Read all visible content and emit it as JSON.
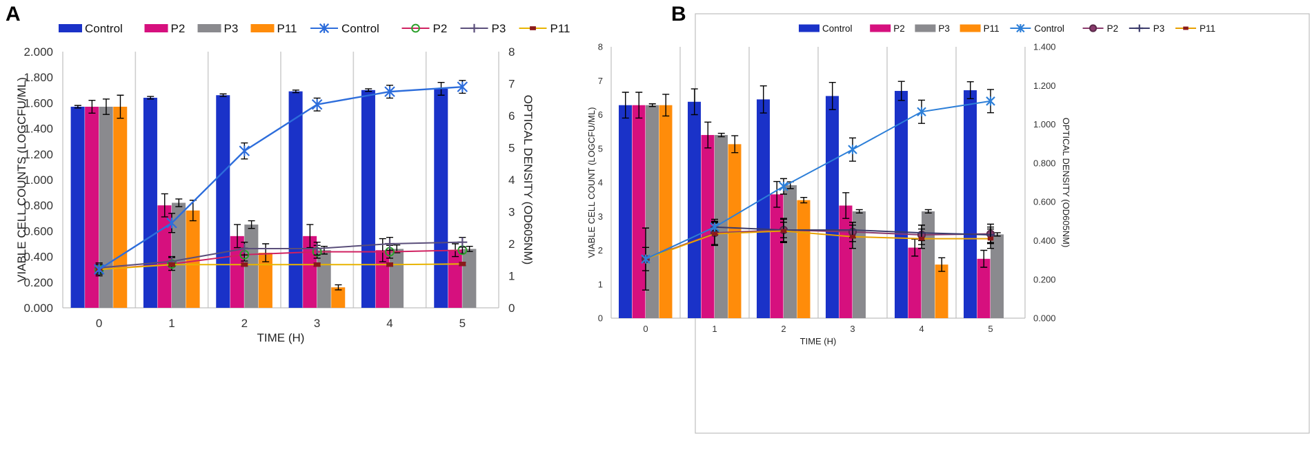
{
  "chart_data": [
    {
      "panel": "A",
      "type": "bar",
      "xlabel": "TIME (H)",
      "ylabel": "VIABLE CELL COUNTS (LOGCFU/ML)",
      "y2label": "OPTICAL DENSITY (OD605NM)",
      "categories": [
        "0",
        "1",
        "2",
        "3",
        "4",
        "5"
      ],
      "ylim": [
        0,
        2
      ],
      "yticks": [
        "0.000",
        "0.200",
        "0.400",
        "0.600",
        "0.800",
        "1.000",
        "1.200",
        "1.400",
        "1.600",
        "1.800",
        "2.000"
      ],
      "y2lim": [
        0,
        8
      ],
      "y2ticks": [
        "0",
        "1",
        "2",
        "3",
        "4",
        "5",
        "6",
        "7",
        "8"
      ],
      "legend_position": "top",
      "bar_series": [
        {
          "name": "Control",
          "color": "#1a32c8",
          "values": [
            1.57,
            1.64,
            1.66,
            1.69,
            1.7,
            1.71
          ],
          "errors": [
            0.01,
            0.01,
            0.01,
            0.01,
            0.01,
            0.05
          ]
        },
        {
          "name": "P2",
          "color": "#d6107e",
          "values": [
            1.57,
            0.8,
            0.56,
            0.56,
            0.45,
            0.45
          ],
          "errors": [
            0.05,
            0.09,
            0.09,
            0.09,
            0.09,
            0.05
          ]
        },
        {
          "name": "P3",
          "color": "#8a8a8e",
          "values": [
            1.57,
            0.82,
            0.65,
            0.45,
            0.46,
            0.46
          ],
          "errors": [
            0.06,
            0.03,
            0.03,
            0.03,
            0.03,
            0.02
          ]
        },
        {
          "name": "P11",
          "color": "#ff8c0a",
          "values": [
            1.57,
            0.76,
            0.43,
            0.16,
            null,
            null
          ],
          "errors": [
            0.09,
            0.08,
            0.07,
            0.02,
            0,
            0
          ]
        }
      ],
      "line_series": [
        {
          "name": "Control",
          "color": "#2d6ddb",
          "marker": "x",
          "values": [
            1.2,
            2.65,
            4.9,
            6.35,
            6.75,
            6.9
          ],
          "errors": [
            0.15,
            0.3,
            0.25,
            0.2,
            0.2,
            0.2
          ]
        },
        {
          "name": "P2",
          "color": "#d02060",
          "marker": "circle",
          "values": [
            1.2,
            1.37,
            1.66,
            1.75,
            1.75,
            1.8
          ],
          "errors": [
            0.2,
            0.2,
            0.2,
            0.2,
            0.2,
            0.1
          ]
        },
        {
          "name": "P3",
          "color": "#5a4e7a",
          "marker": "plus",
          "values": [
            1.25,
            1.45,
            1.85,
            1.85,
            2.0,
            2.05
          ],
          "errors": [
            0.15,
            0.15,
            0.2,
            0.2,
            0.2,
            0.15
          ]
        },
        {
          "name": "P11",
          "color": "#e8b400",
          "marker": "dash",
          "values": [
            1.2,
            1.35,
            1.35,
            1.35,
            1.35,
            1.37
          ],
          "errors": [
            0.05,
            0.05,
            0.05,
            0.05,
            0.05,
            0.05
          ]
        }
      ]
    },
    {
      "panel": "B",
      "type": "bar",
      "xlabel": "TIME (H)",
      "ylabel": "VIABLE CELL COUNT (LOGCFU/ML)",
      "y2label": "OPTICAL DENSITY (OD605NM)",
      "categories": [
        "0",
        "1",
        "2",
        "3",
        "4",
        "5"
      ],
      "ylim": [
        0,
        8
      ],
      "yticks": [
        "0",
        "1",
        "2",
        "3",
        "4",
        "5",
        "6",
        "7",
        "8"
      ],
      "y2lim": [
        0,
        1.4
      ],
      "y2ticks": [
        "0.000",
        "0.200",
        "0.400",
        "0.600",
        "0.800",
        "1.000",
        "1.200",
        "1.400"
      ],
      "legend_position": "top",
      "bar_series": [
        {
          "name": "Control",
          "color": "#1a32c8",
          "values": [
            6.28,
            6.38,
            6.45,
            6.55,
            6.7,
            6.72
          ],
          "errors": [
            0.38,
            0.38,
            0.4,
            0.4,
            0.28,
            0.25
          ]
        },
        {
          "name": "P2",
          "color": "#d6107e",
          "values": [
            6.28,
            5.4,
            3.65,
            3.32,
            2.08,
            1.75
          ],
          "errors": [
            0.38,
            0.38,
            0.38,
            0.38,
            0.25,
            0.25
          ]
        },
        {
          "name": "P3",
          "color": "#8a8a8e",
          "values": [
            6.28,
            5.4,
            3.92,
            3.15,
            3.15,
            2.47
          ],
          "errors": [
            0.04,
            0.05,
            0.1,
            0.05,
            0.05,
            0.05
          ]
        },
        {
          "name": "P11",
          "color": "#ff8c0a",
          "values": [
            6.28,
            5.13,
            3.48,
            null,
            1.58,
            null
          ],
          "errors": [
            0.32,
            0.25,
            0.08,
            0,
            0.2,
            0
          ]
        }
      ],
      "line_series": [
        {
          "name": "Control",
          "color": "#2d7fd8",
          "marker": "x",
          "values": [
            0.305,
            0.47,
            0.68,
            0.87,
            1.065,
            1.12
          ],
          "errors": [
            0,
            0.02,
            0.04,
            0.06,
            0.06,
            0.06
          ]
        },
        {
          "name": "P2",
          "color": "#8a3a6c",
          "marker": "circle",
          "values": [
            0.305,
            0.44,
            0.455,
            0.445,
            0.43,
            0.435
          ],
          "errors": [
            0,
            0.06,
            0.06,
            0.05,
            0.05,
            0.05
          ]
        },
        {
          "name": "P3",
          "color": "#3a3a6a",
          "marker": "plus",
          "values": [
            0.305,
            0.47,
            0.455,
            0.455,
            0.44,
            0.43
          ],
          "errors": [
            0.16,
            0.04,
            0.04,
            0.04,
            0.04,
            0.04
          ]
        },
        {
          "name": "P11",
          "color": "#e8a000",
          "marker": "dash",
          "values": [
            0.305,
            0.435,
            0.45,
            0.42,
            0.41,
            0.41
          ],
          "errors": [
            0.06,
            0.06,
            0.06,
            0.06,
            0.05,
            0.05
          ]
        }
      ]
    }
  ]
}
